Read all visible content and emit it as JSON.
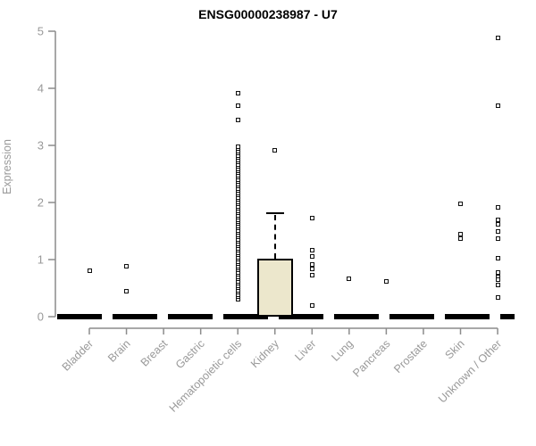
{
  "colors": {
    "box_fill": "#ece7cc",
    "box_border": "#000000",
    "point": "#111111",
    "axis": "#8c8c8c",
    "tick_label": "#999999",
    "title": "#000000",
    "baseline": "#000000"
  },
  "chart_data": {
    "type": "box",
    "title": "ENSG00000238987 - U7",
    "ylabel": "Expression",
    "xlabel": "",
    "ylim": [
      0,
      5
    ],
    "yticks": [
      0,
      1,
      2,
      3,
      4,
      5
    ],
    "grid": false,
    "legend": "none",
    "categories": [
      "Bladder",
      "Brain",
      "Breast",
      "Gastric",
      "Hematopoietic cells",
      "Kidney",
      "Liver",
      "Lung",
      "Pancreas",
      "Prostate",
      "Skin",
      "Unknown / Other"
    ],
    "series": [
      {
        "category": "Bladder",
        "box": {
          "q1": 0,
          "median": 0,
          "q3": 0,
          "whiskers": [
            0,
            0
          ]
        },
        "points": [
          0.8
        ]
      },
      {
        "category": "Brain",
        "box": {
          "q1": 0,
          "median": 0,
          "q3": 0,
          "whiskers": [
            0,
            0
          ]
        },
        "points": [
          0.88,
          0.44
        ]
      },
      {
        "category": "Breast",
        "box": {
          "q1": 0,
          "median": 0,
          "q3": 0,
          "whiskers": [
            0,
            0
          ]
        },
        "points": []
      },
      {
        "category": "Gastric",
        "box": {
          "q1": 0,
          "median": 0,
          "q3": 0,
          "whiskers": [
            0,
            0
          ]
        },
        "points": []
      },
      {
        "category": "Hematopoietic cells",
        "box": {
          "q1": 0,
          "median": 0,
          "q3": 0,
          "whiskers": [
            0,
            0
          ]
        },
        "points": [
          3.91,
          3.7,
          3.44
        ],
        "point_band": {
          "min": 0.31,
          "max": 2.98,
          "count": 70
        }
      },
      {
        "category": "Kidney",
        "box": {
          "q1": 0,
          "median": 0,
          "q3": 1.02,
          "whiskers": [
            0,
            1.81
          ]
        },
        "points": [
          2.92
        ]
      },
      {
        "category": "Liver",
        "box": {
          "q1": 0,
          "median": 0,
          "q3": 0,
          "whiskers": [
            0,
            0
          ]
        },
        "points": [
          1.72,
          1.16,
          1.06,
          0.92,
          0.84,
          0.72,
          0.19
        ]
      },
      {
        "category": "Lung",
        "box": {
          "q1": 0,
          "median": 0,
          "q3": 0,
          "whiskers": [
            0,
            0
          ]
        },
        "points": [
          0.67
        ]
      },
      {
        "category": "Pancreas",
        "box": {
          "q1": 0,
          "median": 0,
          "q3": 0,
          "whiskers": [
            0,
            0
          ]
        },
        "points": [
          0.61
        ]
      },
      {
        "category": "Prostate",
        "box": {
          "q1": 0,
          "median": 0,
          "q3": 0,
          "whiskers": [
            0,
            0
          ]
        },
        "points": []
      },
      {
        "category": "Skin",
        "box": {
          "q1": 0,
          "median": 0,
          "q3": 0,
          "whiskers": [
            0,
            0
          ]
        },
        "points": [
          1.98,
          1.44,
          1.36
        ]
      },
      {
        "category": "Unknown / Other",
        "box": {
          "q1": 0,
          "median": 0,
          "q3": 0,
          "whiskers": [
            0,
            0
          ]
        },
        "points": [
          4.88,
          3.7,
          1.91,
          1.69,
          1.61,
          1.5,
          1.36,
          1.02,
          0.78,
          0.7,
          0.65,
          0.55,
          0.34
        ]
      }
    ]
  }
}
